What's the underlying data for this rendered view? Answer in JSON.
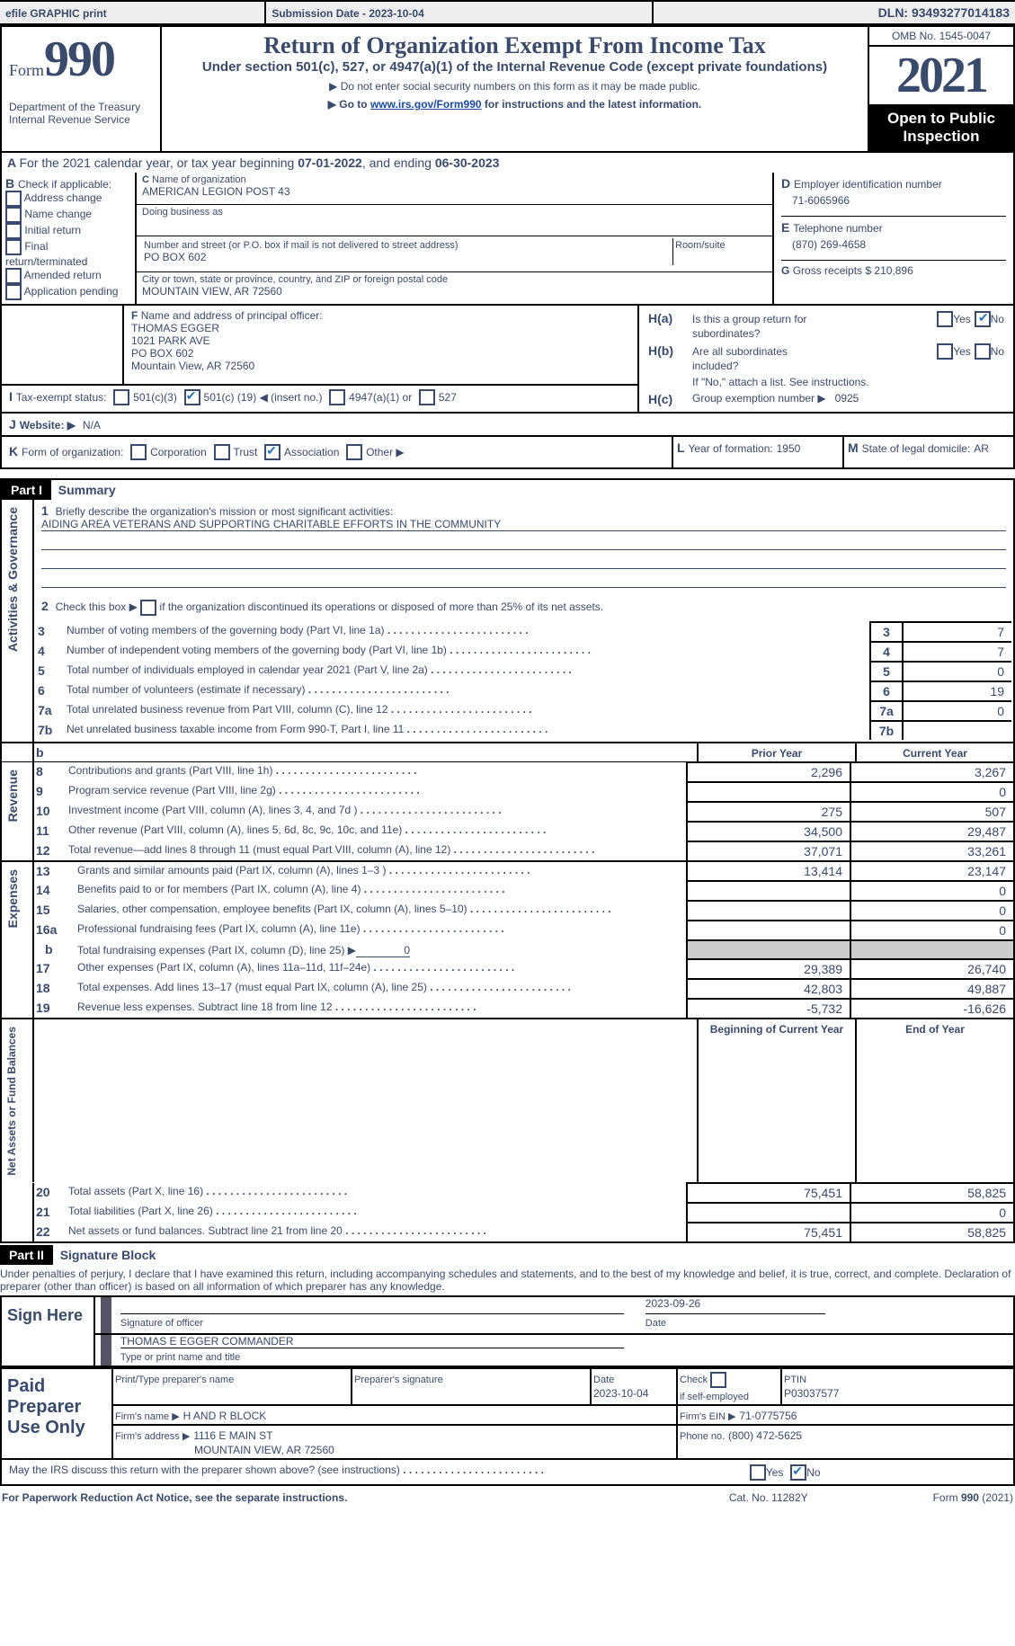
{
  "topbar": {
    "efile": "efile GRAPHIC print",
    "subdate_label": "Submission Date - ",
    "subdate": "2023-10-04",
    "dln_label": "DLN: ",
    "dln": "93493277014183"
  },
  "header": {
    "form_word": "Form",
    "form_num": "990",
    "dept1": "Department of the Treasury",
    "dept2": "Internal Revenue Service",
    "title": "Return of Organization Exempt From Income Tax",
    "sub1": "Under section 501(c), 527, or 4947(a)(1) of the Internal Revenue Code (except private foundations)",
    "sub2": "▶ Do not enter social security numbers on this form as it may be made public.",
    "sub3_pre": "▶ Go to ",
    "sub3_link": "www.irs.gov/Form990",
    "sub3_post": " for instructions and the latest information.",
    "omb": "OMB No. 1545-0047",
    "year": "2021",
    "openpub": "Open to Public Inspection"
  },
  "A": {
    "text": "For the 2021 calendar year, or tax year beginning ",
    "begin": "07-01-2022",
    "mid": ", and ending ",
    "end": "06-30-2023"
  },
  "B": {
    "label": "Check if applicable:",
    "items": [
      "Address change",
      "Name change",
      "Initial return",
      "Final return/terminated",
      "Amended return",
      "Application pending"
    ],
    "letter": "B"
  },
  "C": {
    "name_lbl": "Name of organization",
    "name": "AMERICAN LEGION POST 43",
    "dba_lbl": "Doing business as",
    "addr_lbl": "Number and street (or P.O. box if mail is not delivered to street address)",
    "room_lbl": "Room/suite",
    "addr": "PO BOX 602",
    "city_lbl": "City or town, state or province, country, and ZIP or foreign postal code",
    "city": "MOUNTAIN VIEW, AR  72560",
    "letter": "C"
  },
  "D": {
    "lbl": "Employer identification number",
    "val": "71-6065966",
    "letter": "D"
  },
  "E": {
    "lbl": "Telephone number",
    "val": "(870) 269-4658",
    "letter": "E"
  },
  "G": {
    "lbl": "Gross receipts $",
    "val": "210,896",
    "letter": "G"
  },
  "F": {
    "lbl": "Name and address of principal officer:",
    "name": "THOMAS EGGER",
    "l1": "1021 PARK AVE",
    "l2": "PO BOX 602",
    "l3": "Mountain View, AR  72560",
    "letter": "F"
  },
  "H": {
    "a_lbl1": "Is this a group return for",
    "a_lbl2": "subordinates?",
    "b_lbl1": "Are all subordinates",
    "b_lbl2": "included?",
    "note": "If \"No,\" attach a list. See instructions.",
    "c_lbl": "Group exemption number ▶",
    "c_val": "0925",
    "yes": "Yes",
    "no": "No",
    "a": "H(a)",
    "b": "H(b)",
    "c": "H(c)"
  },
  "I": {
    "lbl": "Tax-exempt status:",
    "opts": [
      "501(c)(3)",
      "501(c) (",
      "4947(a)(1) or",
      "527"
    ],
    "num": "19",
    "insert": ") ◀ (insert no.)",
    "letter": "I"
  },
  "J": {
    "lbl": "Website: ▶",
    "val": "N/A",
    "letter": "J"
  },
  "K": {
    "lbl": "Form of organization:",
    "opts": [
      "Corporation",
      "Trust",
      "Association",
      "Other ▶"
    ],
    "letter": "K"
  },
  "L": {
    "lbl": "Year of formation:",
    "val": "1950",
    "letter": "L"
  },
  "M": {
    "lbl": "State of legal domicile:",
    "val": "AR",
    "letter": "M"
  },
  "part1": {
    "bar": "Part I",
    "title": "Summary",
    "q1a": "Briefly describe the organization's mission or most significant activities:",
    "q1b": "AIDING AREA VETERANS AND SUPPORTING CHARITABLE EFFORTS IN THE COMMUNITY",
    "q2": "Check this box ▶ ",
    "q2b": " if the organization discontinued its operations or disposed of more than 25% of its net assets.",
    "rows_top": [
      {
        "n": "3",
        "t": "Number of voting members of the governing body (Part VI, line 1a)",
        "v": "7"
      },
      {
        "n": "4",
        "t": "Number of independent voting members of the governing body (Part VI, line 1b)",
        "v": "7"
      },
      {
        "n": "5",
        "t": "Total number of individuals employed in calendar year 2021 (Part V, line 2a)",
        "v": "0"
      },
      {
        "n": "6",
        "t": "Total number of volunteers (estimate if necessary)",
        "v": "19"
      },
      {
        "n": "7a",
        "t": "Total unrelated business revenue from Part VIII, column (C), line 12",
        "v": "0"
      },
      {
        "n": "7b",
        "t": "Net unrelated business taxable income from Form 990-T, Part I, line 11",
        "v": ""
      }
    ],
    "prior": "Prior Year",
    "current": "Current Year",
    "revenue": [
      {
        "n": "8",
        "t": "Contributions and grants (Part VIII, line 1h)",
        "p": "2,296",
        "c": "3,267"
      },
      {
        "n": "9",
        "t": "Program service revenue (Part VIII, line 2g)",
        "p": "",
        "c": "0"
      },
      {
        "n": "10",
        "t": "Investment income (Part VIII, column (A), lines 3, 4, and 7d )",
        "p": "275",
        "c": "507"
      },
      {
        "n": "11",
        "t": "Other revenue (Part VIII, column (A), lines 5, 6d, 8c, 9c, 10c, and 11e)",
        "p": "34,500",
        "c": "29,487"
      },
      {
        "n": "12",
        "t": "Total revenue—add lines 8 through 11 (must equal Part VIII, column (A), line 12)",
        "p": "37,071",
        "c": "33,261"
      }
    ],
    "expenses": [
      {
        "n": "13",
        "t": "Grants and similar amounts paid (Part IX, column (A), lines 1–3 )",
        "p": "13,414",
        "c": "23,147"
      },
      {
        "n": "14",
        "t": "Benefits paid to or for members (Part IX, column (A), line 4)",
        "p": "",
        "c": "0"
      },
      {
        "n": "15",
        "t": "Salaries, other compensation, employee benefits (Part IX, column (A), lines 5–10)",
        "p": "",
        "c": "0"
      },
      {
        "n": "16a",
        "t": "Professional fundraising fees (Part IX, column (A), line 11e)",
        "p": "",
        "c": "0"
      },
      {
        "n": "b",
        "t": "Total fundraising expenses (Part IX, column (D), line 25) ▶",
        "u": "0",
        "grey": true
      },
      {
        "n": "17",
        "t": "Other expenses (Part IX, column (A), lines 11a–11d, 11f–24e)",
        "p": "29,389",
        "c": "26,740"
      },
      {
        "n": "18",
        "t": "Total expenses. Add lines 13–17 (must equal Part IX, column (A), line 25)",
        "p": "42,803",
        "c": "49,887"
      },
      {
        "n": "19",
        "t": "Revenue less expenses. Subtract line 18 from line 12",
        "p": "-5,732",
        "c": "-16,626"
      }
    ],
    "begin": "Beginning of Current Year",
    "endy": "End of Year",
    "net": [
      {
        "n": "20",
        "t": "Total assets (Part X, line 16)",
        "p": "75,451",
        "c": "58,825"
      },
      {
        "n": "21",
        "t": "Total liabilities (Part X, line 26)",
        "p": "",
        "c": "0"
      },
      {
        "n": "22",
        "t": "Net assets or fund balances. Subtract line 21 from line 20",
        "p": "75,451",
        "c": "58,825"
      }
    ],
    "side1": "Activities & Governance",
    "side2": "Revenue",
    "side3": "Expenses",
    "side4": "Net Assets or Fund Balances"
  },
  "part2": {
    "bar": "Part II",
    "title": "Signature Block",
    "decl": "Under penalties of perjury, I declare that I have examined this return, including accompanying schedules and statements, and to the best of my knowledge and belief, it is true, correct, and complete. Declaration of preparer (other than officer) is based on all information of which preparer has any knowledge.",
    "sign_here": "Sign Here",
    "sig_of": "Signature of officer",
    "date": "Date",
    "sig_date": "2023-09-26",
    "name": "THOMAS E EGGER  COMMANDER",
    "name_lbl": "Type or print name and title",
    "paid": "Paid Preparer Use Only",
    "pp_name": "Print/Type preparer's name",
    "pp_sig": "Preparer's signature",
    "pp_date_lbl": "Date",
    "pp_date": "2023-10-04",
    "pp_chk": "Check ",
    "pp_chk2": " if self-employed",
    "ptin_lbl": "PTIN",
    "ptin": "P03037577",
    "firm_name_lbl": "Firm's name    ▶",
    "firm_name": "H AND R BLOCK",
    "firm_ein_lbl": "Firm's EIN ▶",
    "firm_ein": "71-0775756",
    "firm_addr_lbl": "Firm's address ▶",
    "firm_addr": "1116 E MAIN ST",
    "firm_addr2": "MOUNTAIN VIEW, AR  72560",
    "phone_lbl": "Phone no.",
    "phone": "(800) 472-5625",
    "may": "May the IRS discuss this return with the preparer shown above? (see instructions)",
    "yes": "Yes",
    "no": "No"
  },
  "footer": {
    "left": "For Paperwork Reduction Act Notice, see the separate instructions.",
    "cat": "Cat. No. 11282Y",
    "right": "Form ",
    "form": "990",
    "yr": " (2021)"
  },
  "colors": {
    "text": "#3a4a6a",
    "link": "#1a4b9c",
    "check": "#2a74b5",
    "grey": "#cccccc"
  }
}
